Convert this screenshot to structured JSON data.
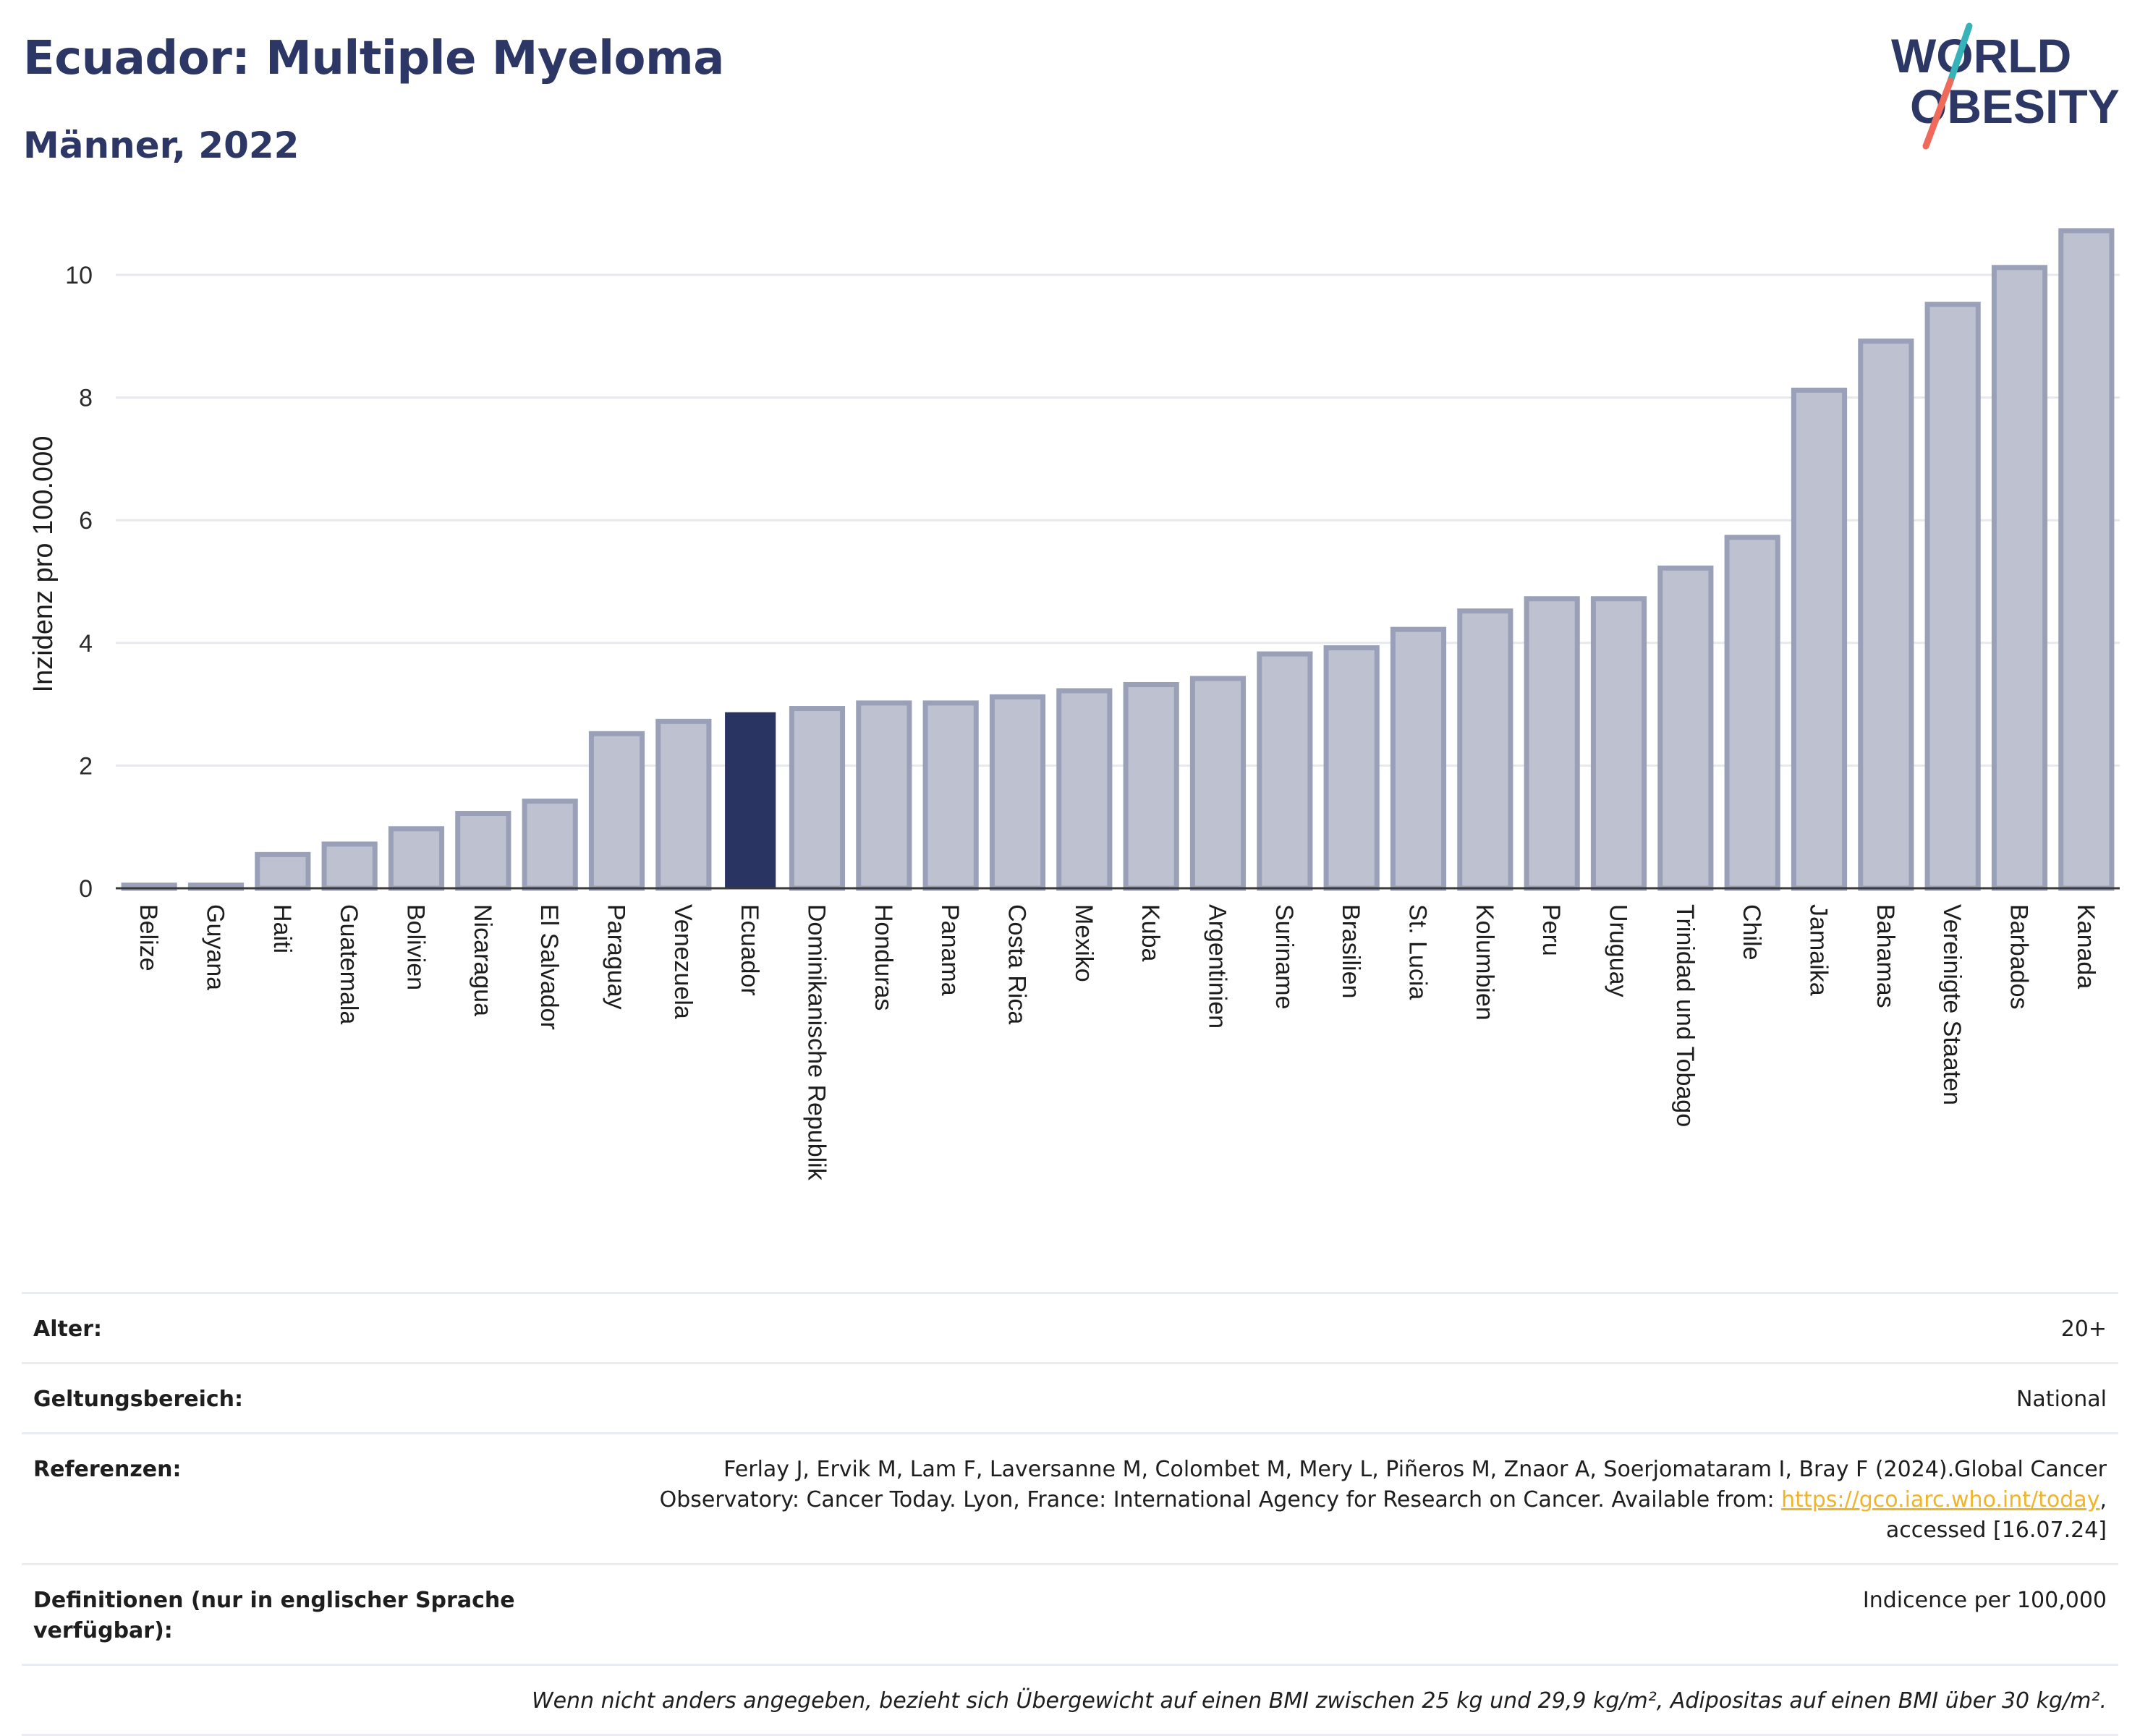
{
  "header": {
    "title": "Ecuador: Multiple Myeloma",
    "subtitle": "Männer, 2022"
  },
  "logo": {
    "line1": "WORLD",
    "line2": "OBESITY",
    "slash_colors": [
      "#36b3b8",
      "#ef6a5a"
    ]
  },
  "colors": {
    "highlight": "#2a3462",
    "bar": "#bec2d0",
    "bar_edge": "#9aa0b8",
    "grid": "#e6e8ee"
  },
  "chart_data": {
    "type": "bar",
    "categories": [
      "Belize",
      "Guyana",
      "Haiti",
      "Guatemala",
      "Bolivien",
      "Nicaragua",
      "El Salvador",
      "Paraguay",
      "Venezuela",
      "Ecuador",
      "Dominikanische Republik",
      "Honduras",
      "Panama",
      "Costa Rica",
      "Mexiko",
      "Kuba",
      "Argentinien",
      "Suriname",
      "Brasilien",
      "St. Lucia",
      "Kolumbien",
      "Peru",
      "Uruguay",
      "Trinidad und Tobago",
      "Chile",
      "Jamaika",
      "Bahamas",
      "Vereinigte Staaten",
      "Barbados",
      "Kanada"
    ],
    "values": [
      0.05,
      0.05,
      0.55,
      0.72,
      0.97,
      1.22,
      1.42,
      2.52,
      2.72,
      2.87,
      2.93,
      3.02,
      3.02,
      3.12,
      3.22,
      3.32,
      3.42,
      3.82,
      3.92,
      4.22,
      4.52,
      4.72,
      4.72,
      5.22,
      5.72,
      8.12,
      8.92,
      9.52,
      10.12,
      10.72
    ],
    "highlight": "Ecuador",
    "ylabel": "Inzidenz pro 100.000",
    "yticks": [
      0,
      2,
      4,
      6,
      8,
      10
    ],
    "ylim": [
      0,
      11
    ],
    "grid": true
  },
  "info": {
    "age_label": "Alter:",
    "age_value": "20+",
    "scope_label": "Geltungsbereich:",
    "scope_value": "National",
    "refs_label": "Referenzen:",
    "refs_text_1": "Ferlay J, Ervik M, Lam F, Laversanne M, Colombet M, Mery L, Piñeros M, Znaor A, Soerjomataram I, Bray F (2024).Global Cancer",
    "refs_text_2": "Observatory: Cancer Today. Lyon, France: International Agency for Research on Cancer. Available from: ",
    "refs_link": "https://gco.iarc.who.int/today",
    "refs_text_3": "accessed [16.07.24]",
    "defs_label": "Definitionen (nur in englischer Sprache verfügbar):",
    "defs_value": "Indicence per 100,000",
    "note": "Wenn nicht anders angegeben, bezieht sich Übergewicht auf einen BMI zwischen 25 kg und 29,9 kg/m², Adipositas auf einen BMI über 30 kg/m²."
  }
}
